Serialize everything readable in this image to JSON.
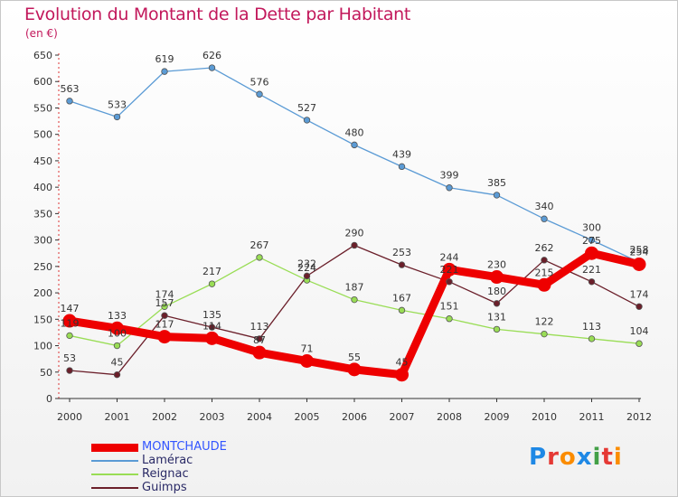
{
  "header": {
    "title": "Evolution du Montant de la Dette par Habitant",
    "subtitle": "(en €)"
  },
  "logo": {
    "text": "Proxiti",
    "colors": [
      "#1e88e5",
      "#e53935",
      "#fb8c00",
      "#1e88e5",
      "#43a047",
      "#e53935",
      "#fb8c00"
    ]
  },
  "chart_data": {
    "type": "line",
    "title": "Evolution du Montant de la Dette par Habitant",
    "subtitle": "(en €)",
    "xlabel": "",
    "ylabel": "",
    "x": [
      "2000",
      "2001",
      "2002",
      "2003",
      "2004",
      "2005",
      "2006",
      "2007",
      "2008",
      "2009",
      "2010",
      "2011",
      "2012"
    ],
    "ylim": [
      0,
      650
    ],
    "yticks": [
      0,
      50,
      100,
      150,
      200,
      250,
      300,
      350,
      400,
      450,
      500,
      550,
      600,
      650
    ],
    "grid": false,
    "legend_position": "bottom-left",
    "series": [
      {
        "name": "MONTCHAUDE",
        "color": "#ee0000",
        "values": [
          147,
          133,
          117,
          114,
          87,
          71,
          55,
          45,
          244,
          230,
          215,
          275,
          254
        ],
        "labels": [
          "147",
          "133",
          "117",
          "114",
          "87",
          "71",
          "55",
          "45",
          "244",
          "230",
          "215",
          "275",
          "254"
        ],
        "highlight": true
      },
      {
        "name": "Lamérac",
        "color": "#5b9bd5",
        "values": [
          563,
          533,
          619,
          626,
          576,
          527,
          480,
          439,
          399,
          385,
          340,
          300,
          258
        ],
        "labels": [
          "563",
          "533",
          "619",
          "626",
          "576",
          "527",
          "480",
          "439",
          "399",
          "385",
          "340",
          "300",
          "258"
        ]
      },
      {
        "name": "Reignac",
        "color": "#99dd55",
        "values": [
          119,
          100,
          174,
          217,
          267,
          224,
          187,
          167,
          151,
          131,
          122,
          113,
          104
        ],
        "labels": [
          "119",
          "100",
          "174",
          "217",
          "267",
          "224",
          "187",
          "167",
          "151",
          "131",
          "122",
          "113",
          "104"
        ]
      },
      {
        "name": "Guimps",
        "color": "#6b1f2a",
        "values": [
          53,
          45,
          157,
          135,
          113,
          232,
          290,
          253,
          221,
          180,
          262,
          221,
          174
        ],
        "labels": [
          "53",
          "45",
          "157",
          "135",
          "113",
          "232",
          "290",
          "253",
          "221",
          "180",
          "262",
          "221",
          "174"
        ]
      }
    ]
  }
}
